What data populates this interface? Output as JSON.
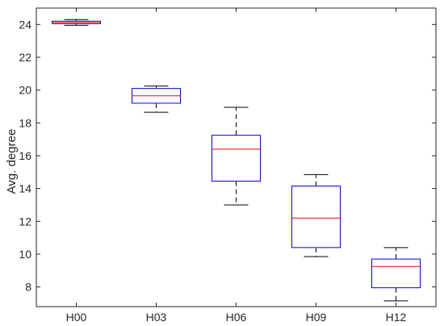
{
  "chart_data": {
    "type": "boxplot",
    "title": "",
    "xlabel": "",
    "ylabel": "Avg. degree",
    "ylim": [
      6.8,
      25.0
    ],
    "yticks": [
      8,
      10,
      12,
      14,
      16,
      18,
      20,
      22,
      24
    ],
    "yticklabels": [
      "8",
      "10",
      "12",
      "14",
      "16",
      "18",
      "20",
      "22",
      "24"
    ],
    "categories": [
      "H00",
      "H03",
      "H06",
      "H09",
      "H12"
    ],
    "boxes": [
      {
        "category": "H00",
        "whisker_low": 23.95,
        "q1": 24.05,
        "median": 24.12,
        "q3": 24.2,
        "whisker_high": 24.3
      },
      {
        "category": "H03",
        "whisker_low": 18.65,
        "q1": 19.2,
        "median": 19.65,
        "q3": 20.1,
        "whisker_high": 20.25
      },
      {
        "category": "H06",
        "whisker_low": 13.0,
        "q1": 14.45,
        "median": 16.4,
        "q3": 17.25,
        "whisker_high": 18.95
      },
      {
        "category": "H09",
        "whisker_low": 9.85,
        "q1": 10.4,
        "median": 12.2,
        "q3": 14.15,
        "whisker_high": 14.85
      },
      {
        "category": "H12",
        "whisker_low": 7.15,
        "q1": 7.95,
        "median": 9.25,
        "q3": 9.7,
        "whisker_high": 10.4
      }
    ],
    "grid": false,
    "box_color": "#0000ff",
    "median_color": "#ff0000",
    "whisker_color": "#000000",
    "axis_color": "#262626"
  }
}
